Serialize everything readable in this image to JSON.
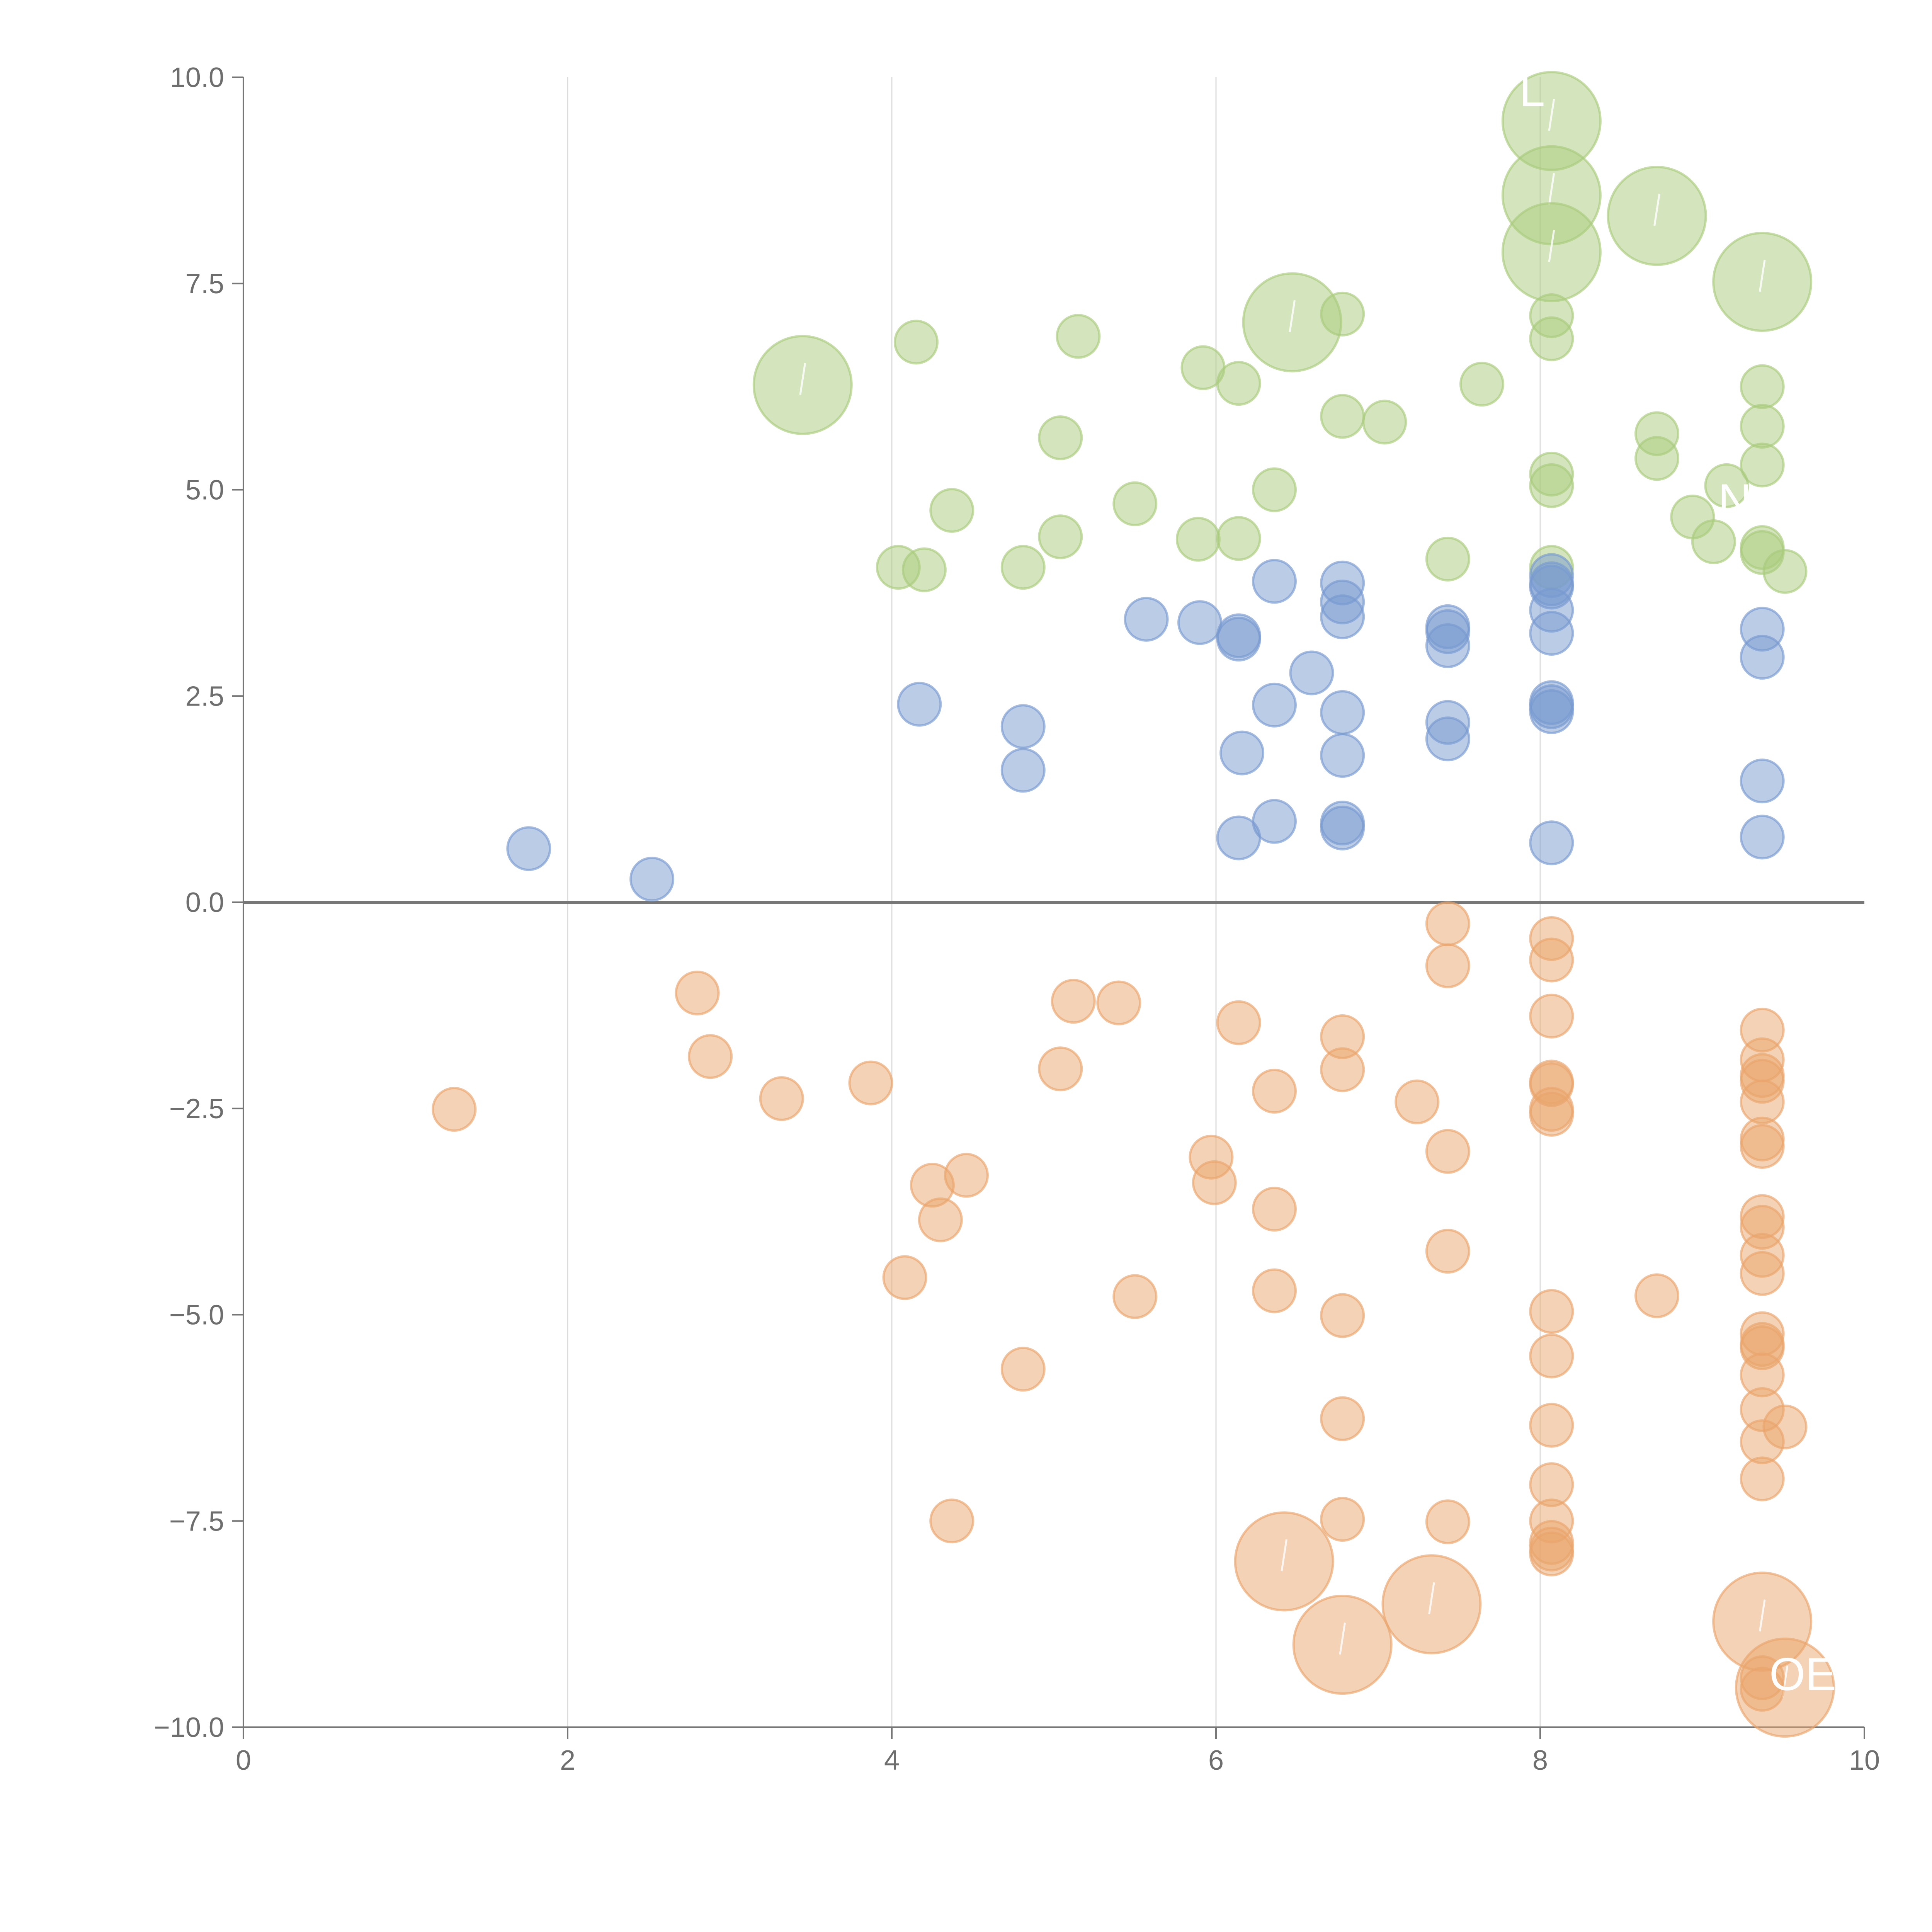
{
  "chart_data": {
    "type": "scatter",
    "title": "",
    "xlabel": "",
    "ylabel": "",
    "xlim": [
      0,
      10
    ],
    "ylim": [
      -10,
      10
    ],
    "grid": "vertical",
    "x_ticks": [
      0,
      2,
      4,
      6,
      8,
      10
    ],
    "x_tick_labels": [
      "0",
      "2",
      "4",
      "6",
      "8",
      "10"
    ],
    "y_ticks": [
      -10,
      -7.5,
      -5,
      -2.5,
      0,
      2.5,
      5,
      7.5,
      10
    ],
    "y_tick_labels": [
      "−10.0",
      "−7.5",
      "−5.0",
      "−2.5",
      "0.0",
      "2.5",
      "5.0",
      "7.5",
      "10.0"
    ],
    "size_scale": "relative marker size (small = 1, large up to 2.3)",
    "series": [
      {
        "name": "green",
        "color": "#a9cb7c",
        "points": [
          [
            8.07,
            9.47,
            2.3
          ],
          [
            8.07,
            8.57,
            2.3
          ],
          [
            8.72,
            8.32,
            2.3
          ],
          [
            8.07,
            7.88,
            2.3
          ],
          [
            9.37,
            7.52,
            2.3
          ],
          [
            6.47,
            7.03,
            2.3
          ],
          [
            3.45,
            6.27,
            2.3
          ],
          [
            6.78,
            7.13,
            1
          ],
          [
            8.07,
            7.11,
            1
          ],
          [
            8.07,
            6.83,
            1
          ],
          [
            4.15,
            6.79,
            1
          ],
          [
            5.15,
            6.86,
            1
          ],
          [
            5.92,
            6.48,
            1
          ],
          [
            6.14,
            6.29,
            1
          ],
          [
            7.64,
            6.28,
            1
          ],
          [
            9.37,
            6.25,
            1
          ],
          [
            6.78,
            5.89,
            1
          ],
          [
            7.04,
            5.82,
            1
          ],
          [
            9.37,
            5.77,
            1
          ],
          [
            5.04,
            5.63,
            1
          ],
          [
            8.72,
            5.68,
            1
          ],
          [
            8.72,
            5.38,
            1
          ],
          [
            9.37,
            5.3,
            1
          ],
          [
            8.07,
            5.19,
            1
          ],
          [
            8.07,
            5.05,
            1
          ],
          [
            9.15,
            5.05,
            1
          ],
          [
            6.36,
            5.0,
            1
          ],
          [
            5.5,
            4.83,
            1
          ],
          [
            4.37,
            4.75,
            1
          ],
          [
            8.94,
            4.67,
            1
          ],
          [
            5.04,
            4.43,
            1
          ],
          [
            5.89,
            4.4,
            1
          ],
          [
            6.14,
            4.41,
            1
          ],
          [
            9.07,
            4.37,
            1
          ],
          [
            9.37,
            4.3,
            1
          ],
          [
            9.37,
            4.24,
            1
          ],
          [
            7.43,
            4.16,
            1
          ],
          [
            4.04,
            4.06,
            1
          ],
          [
            4.2,
            4.03,
            1
          ],
          [
            4.81,
            4.06,
            1
          ],
          [
            8.07,
            4.06,
            1
          ],
          [
            9.51,
            4.01,
            1
          ]
        ]
      },
      {
        "name": "blue",
        "color": "#7899cf",
        "points": [
          [
            6.36,
            3.89,
            1
          ],
          [
            6.78,
            3.87,
            1
          ],
          [
            8.07,
            3.96,
            1
          ],
          [
            8.07,
            3.86,
            1
          ],
          [
            8.07,
            3.82,
            1
          ],
          [
            6.78,
            3.64,
            1
          ],
          [
            6.78,
            3.46,
            1
          ],
          [
            8.07,
            3.54,
            1
          ],
          [
            5.57,
            3.43,
            1
          ],
          [
            5.9,
            3.39,
            1
          ],
          [
            7.43,
            3.34,
            1
          ],
          [
            7.43,
            3.28,
            1
          ],
          [
            9.37,
            3.31,
            1
          ],
          [
            6.14,
            3.23,
            1
          ],
          [
            6.14,
            3.19,
            1
          ],
          [
            8.07,
            3.26,
            1
          ],
          [
            7.43,
            3.11,
            1
          ],
          [
            9.37,
            2.97,
            1
          ],
          [
            6.59,
            2.78,
            1
          ],
          [
            4.17,
            2.4,
            1
          ],
          [
            6.36,
            2.39,
            1
          ],
          [
            8.07,
            2.42,
            1
          ],
          [
            8.07,
            2.37,
            1
          ],
          [
            8.07,
            2.31,
            1
          ],
          [
            6.78,
            2.3,
            1
          ],
          [
            7.43,
            2.18,
            1
          ],
          [
            4.81,
            2.13,
            1
          ],
          [
            7.43,
            1.98,
            1
          ],
          [
            6.16,
            1.81,
            1
          ],
          [
            6.78,
            1.78,
            1
          ],
          [
            4.81,
            1.6,
            1
          ],
          [
            9.37,
            1.47,
            1
          ],
          [
            6.36,
            0.98,
            1
          ],
          [
            6.78,
            0.96,
            1
          ],
          [
            6.78,
            0.9,
            1
          ],
          [
            6.14,
            0.78,
            1
          ],
          [
            9.37,
            0.79,
            1
          ],
          [
            8.07,
            0.72,
            1
          ],
          [
            1.76,
            0.65,
            1
          ],
          [
            2.52,
            0.28,
            1
          ]
        ]
      },
      {
        "name": "orange",
        "color": "#e9a56c",
        "points": [
          [
            7.43,
            -0.26,
            1
          ],
          [
            8.07,
            -0.44,
            1
          ],
          [
            8.07,
            -0.7,
            1
          ],
          [
            7.43,
            -0.77,
            1
          ],
          [
            2.8,
            -1.1,
            1
          ],
          [
            5.12,
            -1.2,
            1
          ],
          [
            5.4,
            -1.22,
            1
          ],
          [
            8.07,
            -1.38,
            1
          ],
          [
            6.14,
            -1.46,
            1
          ],
          [
            9.37,
            -1.55,
            1
          ],
          [
            6.78,
            -1.63,
            1
          ],
          [
            2.88,
            -1.87,
            1
          ],
          [
            9.37,
            -1.91,
            1
          ],
          [
            5.04,
            -2.02,
            1
          ],
          [
            6.78,
            -2.03,
            1
          ],
          [
            9.37,
            -2.1,
            1
          ],
          [
            9.37,
            -2.17,
            1
          ],
          [
            8.07,
            -2.18,
            1
          ],
          [
            8.07,
            -2.21,
            1
          ],
          [
            3.87,
            -2.19,
            1
          ],
          [
            6.36,
            -2.29,
            1
          ],
          [
            3.32,
            -2.38,
            1
          ],
          [
            7.24,
            -2.42,
            1
          ],
          [
            9.37,
            -2.42,
            1
          ],
          [
            1.3,
            -2.51,
            1
          ],
          [
            8.07,
            -2.51,
            1
          ],
          [
            8.07,
            -2.57,
            1
          ],
          [
            9.37,
            -2.87,
            1
          ],
          [
            9.37,
            -2.96,
            1
          ],
          [
            7.43,
            -3.02,
            1
          ],
          [
            5.97,
            -3.09,
            1
          ],
          [
            4.46,
            -3.31,
            1
          ],
          [
            5.99,
            -3.4,
            1
          ],
          [
            4.25,
            -3.43,
            1
          ],
          [
            6.36,
            -3.72,
            1
          ],
          [
            9.37,
            -3.81,
            1
          ],
          [
            4.3,
            -3.85,
            1
          ],
          [
            9.37,
            -3.94,
            1
          ],
          [
            7.43,
            -4.23,
            1
          ],
          [
            9.37,
            -4.28,
            1
          ],
          [
            9.37,
            -4.5,
            1
          ],
          [
            4.08,
            -4.55,
            1
          ],
          [
            6.36,
            -4.71,
            1
          ],
          [
            8.72,
            -4.77,
            1
          ],
          [
            5.5,
            -4.78,
            1
          ],
          [
            8.07,
            -4.96,
            1
          ],
          [
            6.78,
            -5.01,
            1
          ],
          [
            9.37,
            -5.23,
            1
          ],
          [
            9.37,
            -5.36,
            1
          ],
          [
            9.37,
            -5.4,
            1
          ],
          [
            8.07,
            -5.5,
            1
          ],
          [
            4.81,
            -5.66,
            1
          ],
          [
            9.37,
            -5.73,
            1
          ],
          [
            9.37,
            -6.15,
            1
          ],
          [
            6.78,
            -6.26,
            1
          ],
          [
            8.07,
            -6.34,
            1
          ],
          [
            9.51,
            -6.36,
            1
          ],
          [
            9.37,
            -6.54,
            1
          ],
          [
            9.37,
            -6.99,
            1
          ],
          [
            8.07,
            -7.06,
            1
          ],
          [
            4.37,
            -7.5,
            1
          ],
          [
            6.78,
            -7.48,
            1
          ],
          [
            7.43,
            -7.51,
            1
          ],
          [
            8.07,
            -7.5,
            1
          ],
          [
            8.07,
            -7.76,
            1
          ],
          [
            8.07,
            -7.84,
            1
          ],
          [
            8.07,
            -7.9,
            1
          ],
          [
            6.42,
            -7.99,
            2.3
          ],
          [
            7.33,
            -8.51,
            2.3
          ],
          [
            9.37,
            -8.72,
            2.3
          ],
          [
            6.78,
            -9.0,
            2.3
          ],
          [
            9.51,
            -9.52,
            2.3
          ],
          [
            9.37,
            -9.4,
            1
          ],
          [
            9.37,
            -9.54,
            1
          ]
        ]
      }
    ],
    "annotations": [
      {
        "text": "L",
        "x": 7.95,
        "y": 9.65
      },
      {
        "text": "N",
        "x": 9.2,
        "y": 4.68
      },
      {
        "text": "OE",
        "x": 9.62,
        "y": -9.55
      }
    ]
  }
}
